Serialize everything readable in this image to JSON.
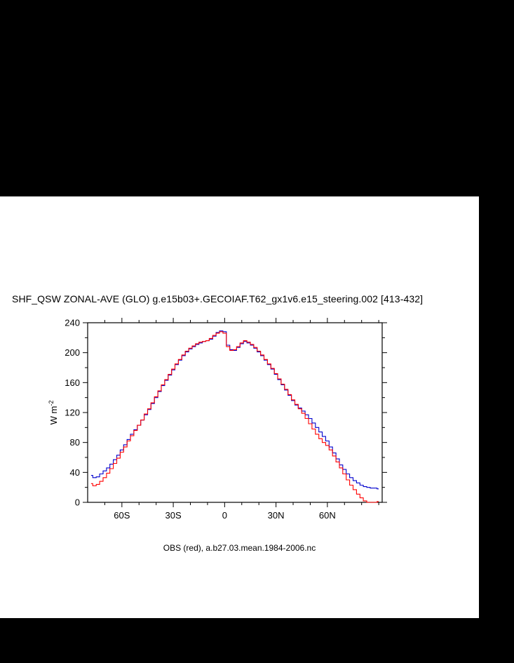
{
  "page": {
    "background": "#000000",
    "canvas_background": "#ffffff"
  },
  "title": "SHF_QSW ZONAL-AVE (GLO) g.e15b03+.GECOIAF.T62_gx1v6.e15_steering.002 [413-432]",
  "caption": "OBS (red), a.b27.03.mean.1984-2006.nc",
  "ylabel": {
    "base": "W m",
    "exp": "-2"
  },
  "chart_data": {
    "type": "line",
    "title": "SHF_QSW ZONAL-AVE (GLO) g.e15b03+.GECOIAF.T62_gx1v6.e15_steering.002 [413-432]",
    "xlabel": "",
    "ylabel": "W m-2",
    "xlim": [
      -80,
      92
    ],
    "ylim": [
      0,
      240
    ],
    "grid": false,
    "legend": "caption text only: OBS (red), a.b27.03.mean.1984-2006.nc",
    "xticks": [
      {
        "value": -60,
        "label": "60S"
      },
      {
        "value": -30,
        "label": "30S"
      },
      {
        "value": 0,
        "label": "0"
      },
      {
        "value": 30,
        "label": "30N"
      },
      {
        "value": 60,
        "label": "60N"
      }
    ],
    "yticks": [
      0,
      40,
      80,
      120,
      160,
      200,
      240
    ],
    "x_minor_step": 10,
    "y_minor_step": 20,
    "x": [
      -78,
      -76,
      -74,
      -72,
      -70,
      -68,
      -66,
      -64,
      -62,
      -60,
      -58,
      -56,
      -54,
      -52,
      -50,
      -48,
      -46,
      -44,
      -42,
      -40,
      -38,
      -36,
      -34,
      -32,
      -30,
      -28,
      -26,
      -24,
      -22,
      -20,
      -18,
      -16,
      -14,
      -12,
      -10,
      -8,
      -6,
      -4,
      -2,
      0,
      2,
      4,
      6,
      8,
      10,
      12,
      14,
      16,
      18,
      20,
      22,
      24,
      26,
      28,
      30,
      32,
      34,
      36,
      38,
      40,
      42,
      44,
      46,
      48,
      50,
      52,
      54,
      56,
      58,
      60,
      62,
      64,
      66,
      68,
      70,
      72,
      74,
      76,
      78,
      80,
      82,
      84,
      86,
      88,
      90
    ],
    "series": [
      {
        "id": "model",
        "name": "g.e15b03+.GECOIAF.T62_gx1v6.e15_steering.002",
        "color": "#0000cd",
        "values": [
          36,
          33,
          34,
          38,
          42,
          46,
          51,
          57,
          63,
          70,
          77,
          84,
          91,
          97,
          103,
          110,
          117,
          124,
          132,
          140,
          148,
          156,
          163,
          170,
          177,
          184,
          190,
          196,
          201,
          205,
          208,
          211,
          213,
          215,
          216,
          218,
          222,
          227,
          229,
          228,
          210,
          204,
          203,
          207,
          212,
          215,
          213,
          210,
          206,
          201,
          196,
          190,
          184,
          178,
          171,
          164,
          157,
          150,
          143,
          136,
          130,
          126,
          122,
          117,
          112,
          106,
          100,
          94,
          88,
          82,
          74,
          66,
          58,
          50,
          44,
          38,
          33,
          29,
          26,
          23,
          21,
          20,
          19,
          19,
          18
        ]
      },
      {
        "id": "obs",
        "name": "OBS",
        "color": "#ff0000",
        "values": [
          25,
          22,
          24,
          28,
          33,
          39,
          45,
          52,
          59,
          67,
          74,
          82,
          89,
          96,
          103,
          110,
          118,
          125,
          133,
          141,
          149,
          157,
          164,
          171,
          178,
          185,
          191,
          197,
          202,
          206,
          209,
          212,
          214,
          215,
          216,
          219,
          223,
          226,
          228,
          226,
          208,
          203,
          204,
          208,
          213,
          216,
          214,
          211,
          207,
          202,
          197,
          191,
          185,
          179,
          172,
          165,
          158,
          151,
          144,
          137,
          131,
          125,
          119,
          112,
          105,
          98,
          91,
          85,
          80,
          76,
          70,
          62,
          54,
          46,
          38,
          30,
          23,
          17,
          11,
          6,
          2,
          0,
          0,
          0,
          1
        ]
      }
    ]
  }
}
